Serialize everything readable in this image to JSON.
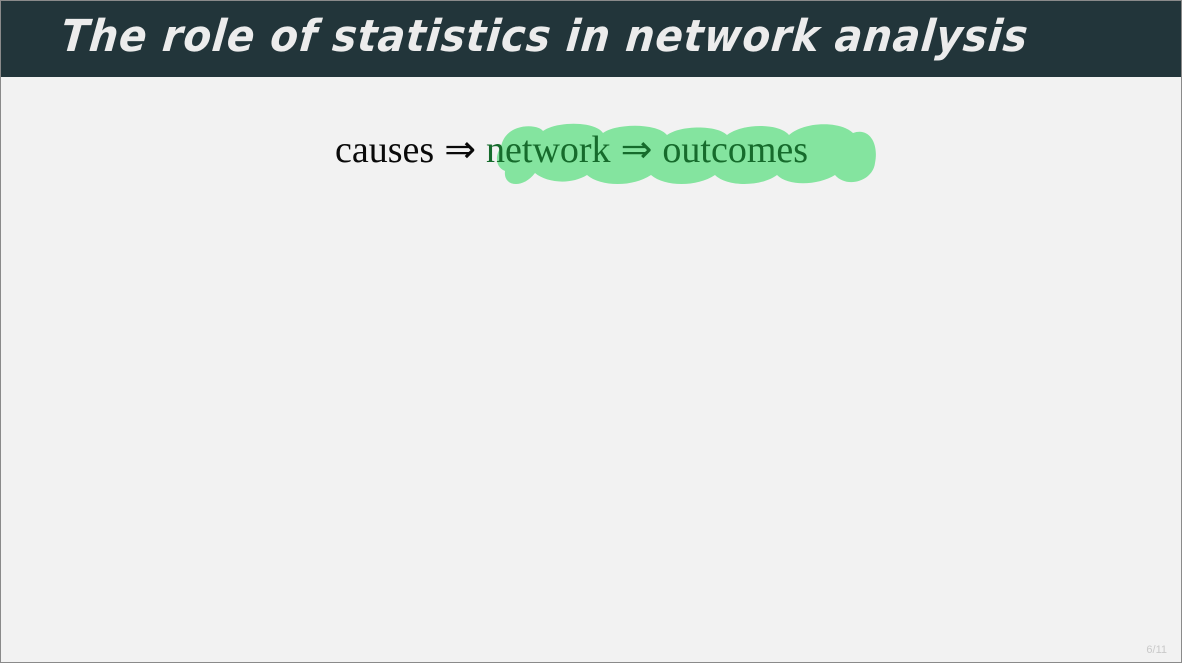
{
  "slide": {
    "title": "The role of statistics in network analysis",
    "formula": {
      "causes": "causes",
      "arrow": "⇒",
      "network": "network",
      "outcomes": "outcomes"
    },
    "page_number": "6/11",
    "highlight_color": "#7fe39a",
    "header_color": "#22353a"
  }
}
